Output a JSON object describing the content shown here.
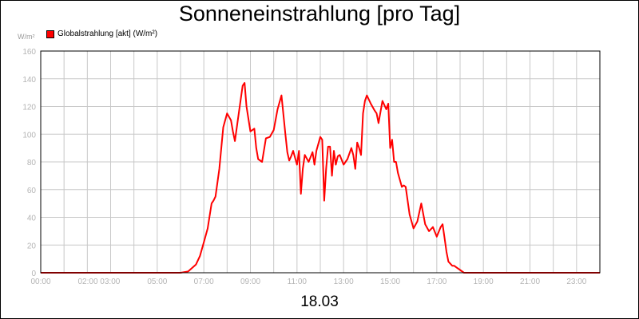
{
  "chart_data": {
    "type": "line",
    "title": "Sonneneinstrahlung [pro Tag]",
    "ylabel": "W/m²",
    "xlabel": "18.03",
    "ylim": [
      0,
      160
    ],
    "y_ticks": [
      0,
      20,
      40,
      60,
      80,
      100,
      120,
      140,
      160
    ],
    "x_tick_labels": [
      "00:00",
      "02:00 03:00",
      "05:00",
      "07:00",
      "09:00",
      "11:00",
      "13:00",
      "15:00",
      "17:00",
      "19:00",
      "21:00",
      "23:00"
    ],
    "grid": true,
    "legend_position": "top-left",
    "colors": {
      "series": "#ff0000",
      "grid": "#c8c8c8",
      "axis_text": "#b4b4b4"
    },
    "series": [
      {
        "name": "Globalstrahlung [akt] (W/m²)",
        "x": [
          "00:00",
          "06:00",
          "06:20",
          "06:40",
          "06:50",
          "07:00",
          "07:10",
          "07:20",
          "07:25",
          "07:30",
          "07:40",
          "07:50",
          "08:00",
          "08:10",
          "08:15",
          "08:20",
          "08:30",
          "08:40",
          "08:45",
          "08:50",
          "09:00",
          "09:10",
          "09:15",
          "09:20",
          "09:30",
          "09:40",
          "09:50",
          "10:00",
          "10:10",
          "10:20",
          "10:30",
          "10:35",
          "10:40",
          "10:45",
          "10:50",
          "11:00",
          "11:05",
          "11:10",
          "11:15",
          "11:20",
          "11:30",
          "11:40",
          "11:45",
          "11:50",
          "12:00",
          "12:05",
          "12:10",
          "12:15",
          "12:20",
          "12:25",
          "12:30",
          "12:35",
          "12:40",
          "12:45",
          "12:50",
          "13:00",
          "13:10",
          "13:20",
          "13:25",
          "13:30",
          "13:35",
          "13:40",
          "13:45",
          "13:50",
          "13:55",
          "14:00",
          "14:10",
          "14:20",
          "14:25",
          "14:30",
          "14:40",
          "14:50",
          "14:55",
          "15:00",
          "15:05",
          "15:10",
          "15:15",
          "15:20",
          "15:30",
          "15:35",
          "15:40",
          "15:50",
          "16:00",
          "16:10",
          "16:20",
          "16:30",
          "16:40",
          "16:50",
          "17:00",
          "17:10",
          "17:15",
          "17:20",
          "17:25",
          "17:30",
          "17:40",
          "17:45",
          "17:50",
          "18:00",
          "18:10",
          "18:20",
          "18:30",
          "19:00",
          "24:00"
        ],
        "y": [
          0,
          0,
          1,
          6,
          12,
          22,
          32,
          50,
          52,
          55,
          75,
          105,
          115,
          110,
          102,
          95,
          115,
          135,
          137,
          120,
          102,
          104,
          90,
          82,
          80,
          97,
          98,
          103,
          118,
          128,
          100,
          87,
          81,
          84,
          88,
          78,
          88,
          57,
          75,
          85,
          80,
          87,
          78,
          88,
          98,
          96,
          52,
          75,
          91,
          91,
          70,
          88,
          78,
          84,
          85,
          78,
          82,
          90,
          85,
          75,
          94,
          90,
          85,
          115,
          124,
          128,
          122,
          117,
          115,
          108,
          124,
          118,
          122,
          90,
          96,
          80,
          80,
          72,
          62,
          63,
          62,
          42,
          32,
          37,
          50,
          35,
          30,
          33,
          26,
          33,
          35,
          25,
          15,
          8,
          5,
          5,
          4,
          2,
          0,
          0,
          0,
          0,
          0
        ]
      }
    ]
  },
  "date_label": "18.03"
}
